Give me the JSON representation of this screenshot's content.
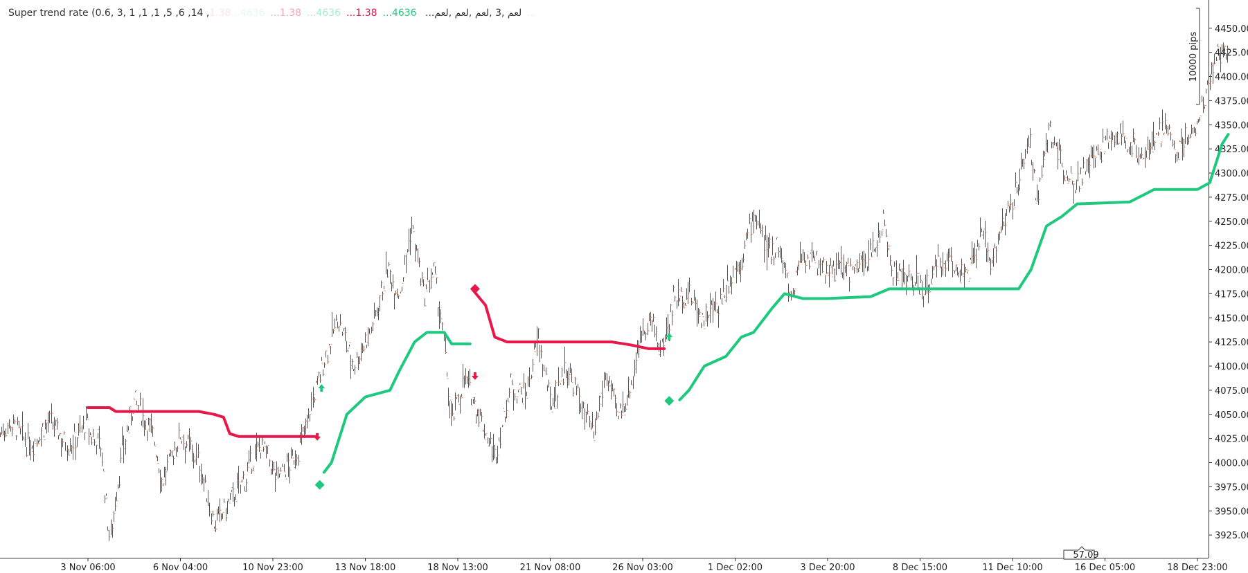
{
  "legend": {
    "name": "Super trend rate (0.6, 3, 1 ,1 ,1 ,5 ,6 ,14 ,لعم ,3 ,لعم ,لعم ,لعم...",
    "values": [
      {
        "text": "4636...",
        "color": "#1ec97e"
      },
      {
        "text": "1.38...",
        "color": "#e8174a"
      },
      {
        "text": "4636...",
        "color": "#a8ecd0"
      },
      {
        "text": "1.38...",
        "color": "#f4a5b8"
      },
      {
        "text": "4636...",
        "color": "#e6f8f0"
      },
      {
        "text": "1.38...",
        "color": "#fbe3e9"
      }
    ]
  },
  "ruler": {
    "label": "10000 pips"
  },
  "price_marker": {
    "label": "57.09"
  },
  "colors": {
    "up": "#1ec97e",
    "down": "#e8174a",
    "bar": "#555555",
    "bar_close": "#f07a4a"
  },
  "chart_data": {
    "type": "line",
    "title": "",
    "ylim": [
      3900,
      4470
    ],
    "y_ticks": [
      "4450.00",
      "4425.00",
      "4400.00",
      "4375.00",
      "4350.00",
      "4325.00",
      "4300.00",
      "4275.00",
      "4250.00",
      "4225.00",
      "4200.00",
      "4175.00",
      "4150.00",
      "4125.00",
      "4100.00",
      "4075.00",
      "4050.00",
      "4025.00",
      "4000.00",
      "3975.00",
      "3950.00",
      "3925.00"
    ],
    "x_ticks": [
      "3 Nov 06:00",
      "6 Nov 04:00",
      "10 Nov 23:00",
      "13 Nov 18:00",
      "18 Nov 13:00",
      "21 Nov 08:00",
      "26 Nov 03:00",
      "1 Dec 02:00",
      "3 Dec 20:00",
      "8 Dec 15:00",
      "11 Dec 10:00",
      "16 Dec 05:00",
      "18 Dec 23:00"
    ],
    "price_path": [
      [
        0,
        4030
      ],
      [
        0.2,
        4020
      ],
      [
        0.35,
        3920
      ],
      [
        0.55,
        4010
      ],
      [
        0.75,
        4065
      ],
      [
        1.05,
        4030
      ],
      [
        1.2,
        3980
      ],
      [
        1.5,
        4030
      ],
      [
        1.8,
        4000
      ],
      [
        2.05,
        3935
      ],
      [
        2.3,
        3960
      ],
      [
        2.55,
        3985
      ],
      [
        2.8,
        4020
      ],
      [
        3.05,
        3985
      ],
      [
        3.3,
        4000
      ],
      [
        3.45,
        4020
      ],
      [
        3.6,
        4055
      ],
      [
        3.8,
        4100
      ],
      [
        4.05,
        4150
      ],
      [
        4.3,
        4100
      ],
      [
        4.6,
        4140
      ],
      [
        4.85,
        4200
      ],
      [
        5.05,
        4175
      ],
      [
        5.25,
        4245
      ],
      [
        5.45,
        4170
      ],
      [
        5.6,
        4200
      ],
      [
        5.75,
        4135
      ],
      [
        5.9,
        4040
      ],
      [
        6.1,
        4090
      ],
      [
        6.4,
        4040
      ],
      [
        6.6,
        4005
      ],
      [
        6.85,
        4080
      ],
      [
        7.1,
        4070
      ],
      [
        7.3,
        4130
      ],
      [
        7.5,
        4060
      ],
      [
        7.75,
        4100
      ],
      [
        8.0,
        4060
      ],
      [
        8.2,
        4025
      ],
      [
        8.4,
        4095
      ],
      [
        8.6,
        4045
      ],
      [
        8.8,
        4080
      ],
      [
        8.95,
        4130
      ],
      [
        9.1,
        4150
      ],
      [
        9.3,
        4115
      ],
      [
        9.5,
        4170
      ],
      [
        9.75,
        4175
      ],
      [
        9.95,
        4150
      ],
      [
        10.2,
        4160
      ],
      [
        10.4,
        4190
      ],
      [
        10.6,
        4210
      ],
      [
        10.8,
        4260
      ],
      [
        11.0,
        4220
      ],
      [
        11.2,
        4225
      ],
      [
        11.4,
        4170
      ],
      [
        11.55,
        4215
      ],
      [
        11.75,
        4210
      ],
      [
        12.0,
        4200
      ],
      [
        12.25,
        4200
      ],
      [
        12.5,
        4200
      ],
      [
        12.7,
        4215
      ],
      [
        12.9,
        4250
      ],
      [
        13.05,
        4200
      ],
      [
        13.3,
        4190
      ],
      [
        13.6,
        4180
      ],
      [
        13.8,
        4205
      ],
      [
        14.0,
        4210
      ],
      [
        14.25,
        4190
      ],
      [
        14.5,
        4235
      ],
      [
        14.65,
        4210
      ],
      [
        14.85,
        4250
      ],
      [
        15.1,
        4285
      ],
      [
        15.25,
        4340
      ],
      [
        15.4,
        4270
      ],
      [
        15.6,
        4345
      ],
      [
        15.8,
        4310
      ],
      [
        16.0,
        4290
      ],
      [
        16.25,
        4310
      ],
      [
        16.5,
        4330
      ],
      [
        16.7,
        4340
      ],
      [
        16.9,
        4330
      ],
      [
        17.1,
        4320
      ],
      [
        17.3,
        4330
      ],
      [
        17.5,
        4350
      ],
      [
        17.65,
        4320
      ],
      [
        17.85,
        4340
      ],
      [
        18.0,
        4350
      ],
      [
        18.2,
        4400
      ],
      [
        18.35,
        4425
      ],
      [
        18.5,
        4430
      ]
    ],
    "series": [
      {
        "values": [
          [
            0,
            4057
          ],
          [
            0.35,
            4057
          ],
          [
            0.45,
            4053
          ],
          [
            1.8,
            4053
          ],
          [
            2.05,
            4050
          ],
          [
            2.2,
            4047
          ],
          [
            2.3,
            4030
          ],
          [
            2.45,
            4027
          ],
          [
            2.75,
            4027
          ],
          [
            3.4,
            4027
          ],
          [
            3.68,
            4027
          ]
        ]
      },
      {
        "values": [
          [
            3.83,
            3990
          ],
          [
            3.95,
            4000
          ],
          [
            4.2,
            4050
          ],
          [
            4.5,
            4068
          ],
          [
            4.9,
            4075
          ],
          [
            5.05,
            4095
          ],
          [
            5.3,
            4125
          ],
          [
            5.5,
            4135
          ],
          [
            5.78,
            4135
          ],
          [
            5.9,
            4123
          ],
          [
            6.2,
            4123
          ]
        ]
      },
      {
        "values": [
          [
            6.23,
            4180
          ],
          [
            6.45,
            4163
          ],
          [
            6.6,
            4130
          ],
          [
            6.8,
            4125
          ],
          [
            7.1,
            4125
          ],
          [
            8.5,
            4125
          ],
          [
            8.8,
            4122
          ],
          [
            9.1,
            4118
          ],
          [
            9.35,
            4118
          ]
        ]
      },
      {
        "values": [
          [
            9.6,
            4065
          ],
          [
            9.75,
            4075
          ],
          [
            10.0,
            4100
          ],
          [
            10.35,
            4110
          ],
          [
            10.6,
            4130
          ],
          [
            10.8,
            4135
          ],
          [
            11.1,
            4160
          ],
          [
            11.3,
            4175
          ],
          [
            11.6,
            4170
          ],
          [
            12.0,
            4170
          ],
          [
            12.7,
            4172
          ],
          [
            13.0,
            4180
          ],
          [
            14.3,
            4180
          ],
          [
            15.1,
            4180
          ],
          [
            15.3,
            4200
          ],
          [
            15.55,
            4245
          ],
          [
            15.8,
            4255
          ],
          [
            16.05,
            4268
          ],
          [
            16.9,
            4270
          ],
          [
            17.3,
            4283
          ],
          [
            18.0,
            4283
          ],
          [
            18.2,
            4290
          ],
          [
            18.4,
            4330
          ],
          [
            18.5,
            4340
          ]
        ]
      }
    ],
    "markers": [
      {
        "type": "diamond",
        "x": 3.76,
        "y": 3977,
        "series": "up"
      },
      {
        "type": "arrow-up",
        "x": 3.79,
        "y": 4077,
        "series": "up"
      },
      {
        "type": "arrow-down",
        "x": 3.72,
        "y": 4027,
        "series": "down"
      },
      {
        "type": "diamond",
        "x": 6.28,
        "y": 4180,
        "series": "down"
      },
      {
        "type": "arrow-down",
        "x": 6.28,
        "y": 4090,
        "series": "down"
      },
      {
        "type": "diamond",
        "x": 9.43,
        "y": 4064,
        "series": "up"
      },
      {
        "type": "arrow-up",
        "x": 9.43,
        "y": 4130,
        "series": "up"
      }
    ],
    "grid": false,
    "legend_position": "top-left"
  }
}
